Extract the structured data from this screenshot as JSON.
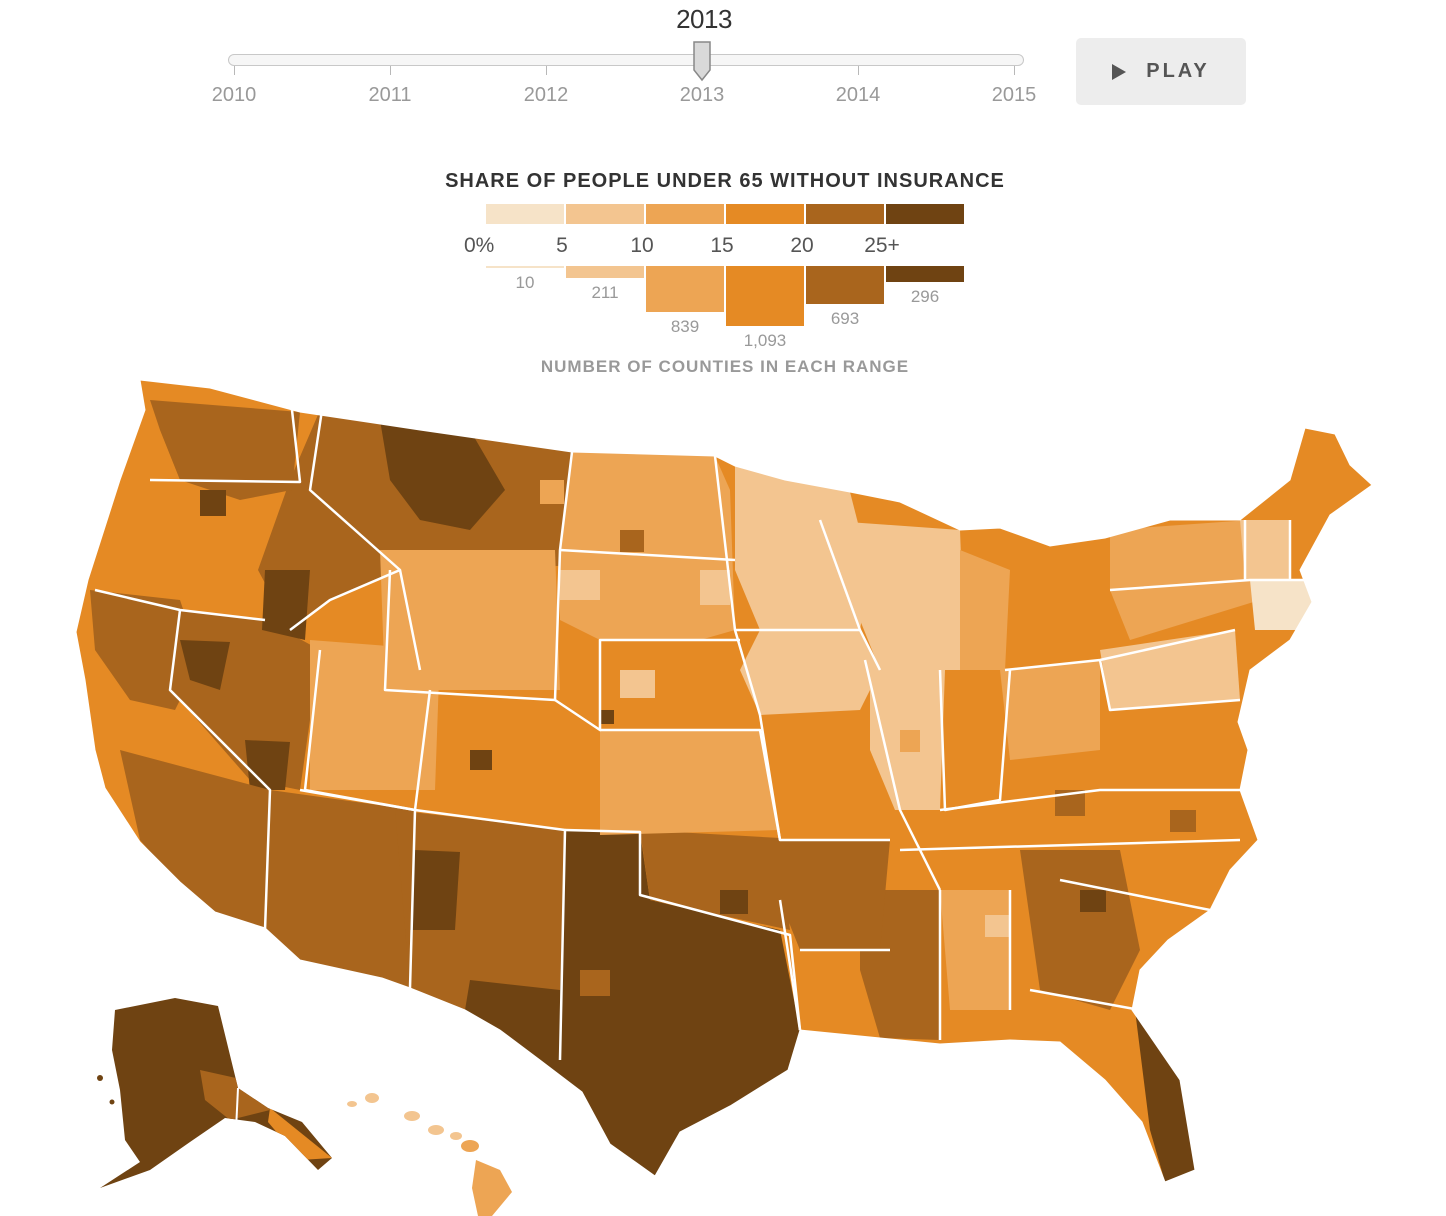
{
  "timeline": {
    "selected_year": "2013",
    "years": [
      "2010",
      "2011",
      "2012",
      "2013",
      "2014",
      "2015"
    ],
    "selected_index": 3
  },
  "play_button": {
    "label": "PLAY",
    "icon": "play-icon"
  },
  "legend": {
    "title": "SHARE OF PEOPLE UNDER 65 WITHOUT INSURANCE",
    "subtitle": "NUMBER OF COUNTIES IN EACH RANGE",
    "bins": [
      {
        "label": "0%",
        "color": "#f6e3c8",
        "count": 10,
        "count_label": "10"
      },
      {
        "label": "5",
        "color": "#f3c590",
        "count": 211,
        "count_label": "211"
      },
      {
        "label": "10",
        "color": "#eda554",
        "count": 839,
        "count_label": "839"
      },
      {
        "label": "15",
        "color": "#e58a24",
        "count": 1093,
        "count_label": "1,093"
      },
      {
        "label": "20",
        "color": "#a9651d",
        "count": 693,
        "count_label": "693"
      },
      {
        "label": "25+",
        "color": "#6f4312",
        "count": 296,
        "count_label": "296"
      }
    ]
  }
}
